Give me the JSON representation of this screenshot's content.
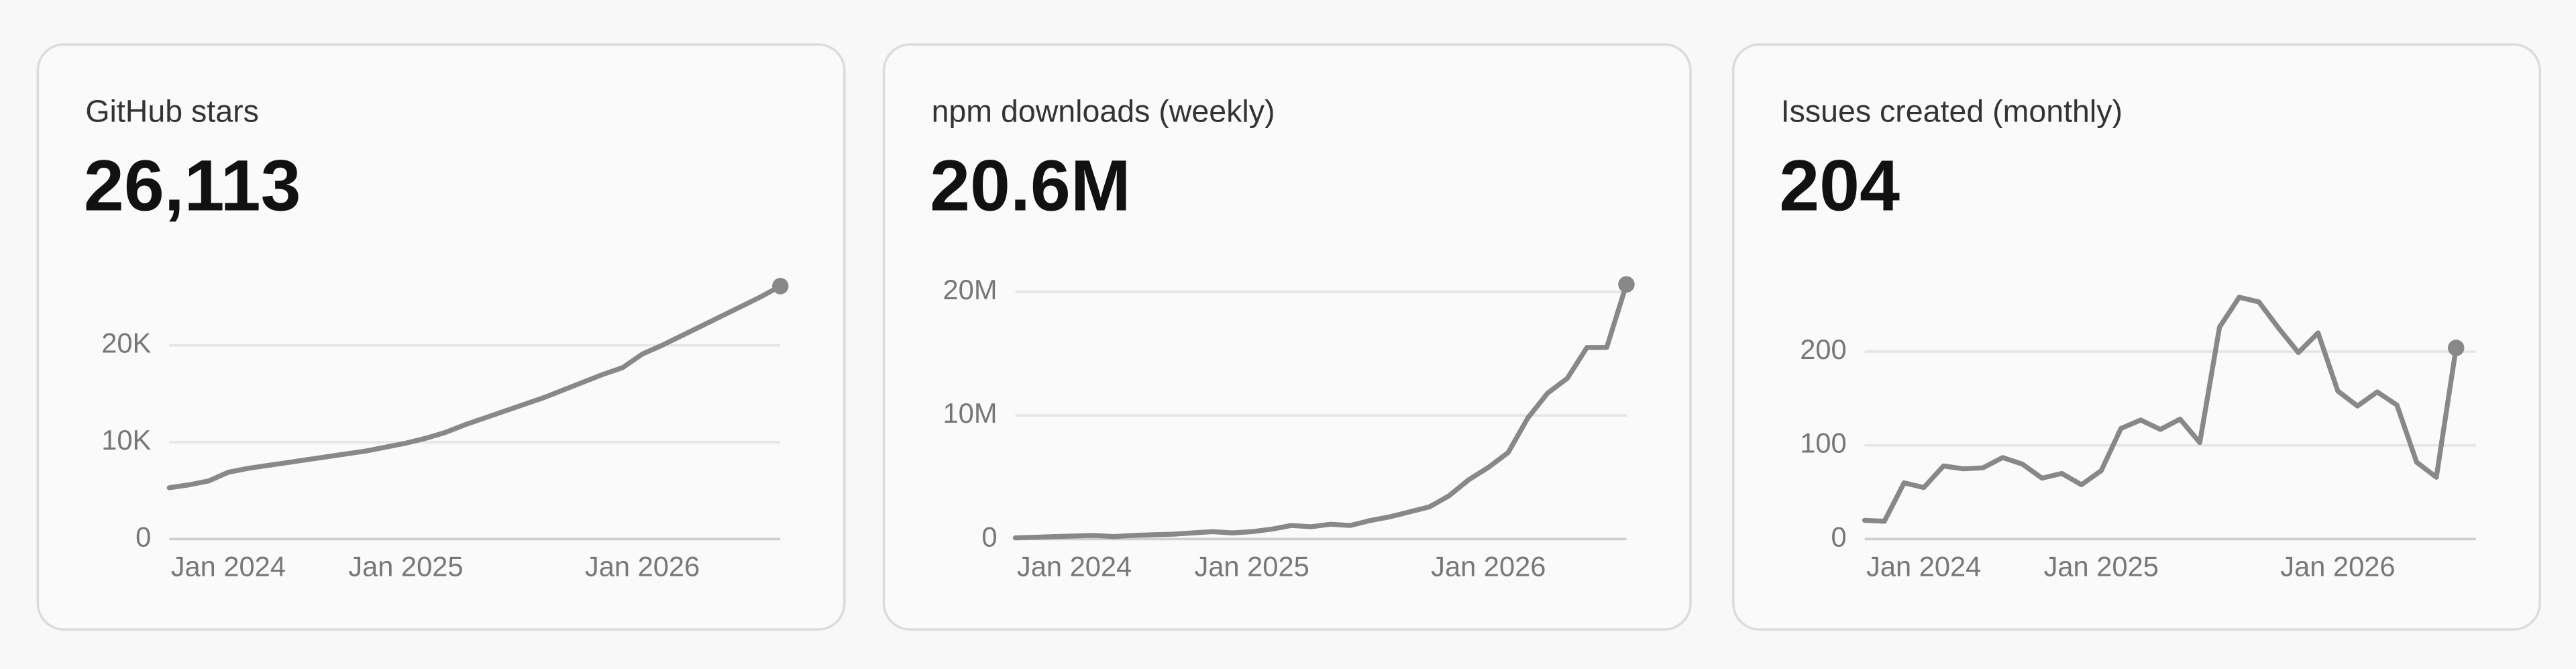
{
  "chart_data": [
    {
      "type": "line",
      "title": "GitHub stars",
      "headline": "26,113",
      "color": "#888888",
      "grid": true,
      "x": [
        "2024-01",
        "2024-02",
        "2024-03",
        "2024-04",
        "2024-05",
        "2024-06",
        "2024-07",
        "2024-08",
        "2024-09",
        "2024-10",
        "2024-11",
        "2024-12",
        "2025-01",
        "2025-02",
        "2025-03",
        "2025-04",
        "2025-05",
        "2025-06",
        "2025-07",
        "2025-08",
        "2025-09",
        "2025-10",
        "2025-11",
        "2025-12",
        "2026-01",
        "2026-02",
        "2026-03",
        "2026-04",
        "2026-05",
        "2026-06",
        "2026-07",
        "2026-08"
      ],
      "values": [
        5300,
        5600,
        6000,
        6900,
        7300,
        7600,
        7900,
        8200,
        8500,
        8800,
        9100,
        9500,
        9900,
        10400,
        11000,
        11800,
        12500,
        13200,
        13900,
        14600,
        15400,
        16200,
        17000,
        17700,
        19100,
        20000,
        21000,
        22000,
        23000,
        24000,
        25000,
        26113
      ],
      "xlim": [
        "2024-01",
        "2026-08"
      ],
      "xticks": [
        {
          "value": "2024-01",
          "label": "Jan 2024"
        },
        {
          "value": "2025-01",
          "label": "Jan 2025"
        },
        {
          "value": "2026-01",
          "label": "Jan 2026"
        }
      ],
      "ylim": [
        0,
        26800
      ],
      "yticks": [
        0,
        {
          "value": 10000,
          "label": "10K"
        },
        {
          "value": 20000,
          "label": "20K"
        }
      ]
    },
    {
      "type": "line",
      "title": "npm downloads (weekly)",
      "headline": "20.6M",
      "color": "#888888",
      "grid": true,
      "x": [
        "2024-01",
        "2024-02",
        "2024-03",
        "2024-04",
        "2024-05",
        "2024-06",
        "2024-07",
        "2024-08",
        "2024-09",
        "2024-10",
        "2024-11",
        "2024-12",
        "2025-01",
        "2025-02",
        "2025-03",
        "2025-04",
        "2025-05",
        "2025-06",
        "2025-07",
        "2025-08",
        "2025-09",
        "2025-10",
        "2025-11",
        "2025-12",
        "2026-01",
        "2026-02",
        "2026-03",
        "2026-04",
        "2026-05",
        "2026-06",
        "2026-07",
        "2026-08"
      ],
      "values": [
        100000,
        150000,
        200000,
        250000,
        300000,
        200000,
        300000,
        350000,
        400000,
        500000,
        600000,
        500000,
        600000,
        800000,
        1100000,
        1000000,
        1200000,
        1100000,
        1500000,
        1800000,
        2200000,
        2600000,
        3500000,
        4800000,
        5800000,
        7000000,
        9800000,
        11800000,
        13000000,
        15500000,
        15500000,
        20600000
      ],
      "xlim": [
        "2024-01",
        "2026-08"
      ],
      "xticks": [
        {
          "value": "2024-01",
          "label": "Jan 2024"
        },
        {
          "value": "2025-01",
          "label": "Jan 2025"
        },
        {
          "value": "2026-01",
          "label": "Jan 2026"
        }
      ],
      "ylim": [
        0,
        21000000
      ],
      "yticks": [
        0,
        {
          "value": 10000000,
          "label": "10M"
        },
        {
          "value": 20000000,
          "label": "20M"
        }
      ]
    },
    {
      "type": "line",
      "title": "Issues created (monthly)",
      "headline": "204",
      "color": "#888888",
      "grid": true,
      "x": [
        "2024-01",
        "2024-02",
        "2024-03",
        "2024-04",
        "2024-05",
        "2024-06",
        "2024-07",
        "2024-08",
        "2024-09",
        "2024-10",
        "2024-11",
        "2024-12",
        "2025-01",
        "2025-02",
        "2025-03",
        "2025-04",
        "2025-05",
        "2025-06",
        "2025-07",
        "2025-08",
        "2025-09",
        "2025-10",
        "2025-11",
        "2025-12",
        "2026-01",
        "2026-02",
        "2026-03",
        "2026-04",
        "2026-05",
        "2026-06",
        "2026-07"
      ],
      "values": [
        20,
        19,
        60,
        55,
        78,
        75,
        76,
        87,
        80,
        65,
        70,
        58,
        73,
        118,
        127,
        117,
        128,
        103,
        226,
        258,
        253,
        225,
        199,
        220,
        158,
        142,
        157,
        143,
        82,
        66,
        204
      ],
      "xlim": [
        "2024-01",
        "2026-08"
      ],
      "xticks": [
        {
          "value": "2024-01",
          "label": "Jan 2024"
        },
        {
          "value": "2025-01",
          "label": "Jan 2025"
        },
        {
          "value": "2026-01",
          "label": "Jan 2026"
        }
      ],
      "ylim": [
        0,
        277
      ],
      "yticks": [
        0,
        100,
        200
      ]
    }
  ]
}
